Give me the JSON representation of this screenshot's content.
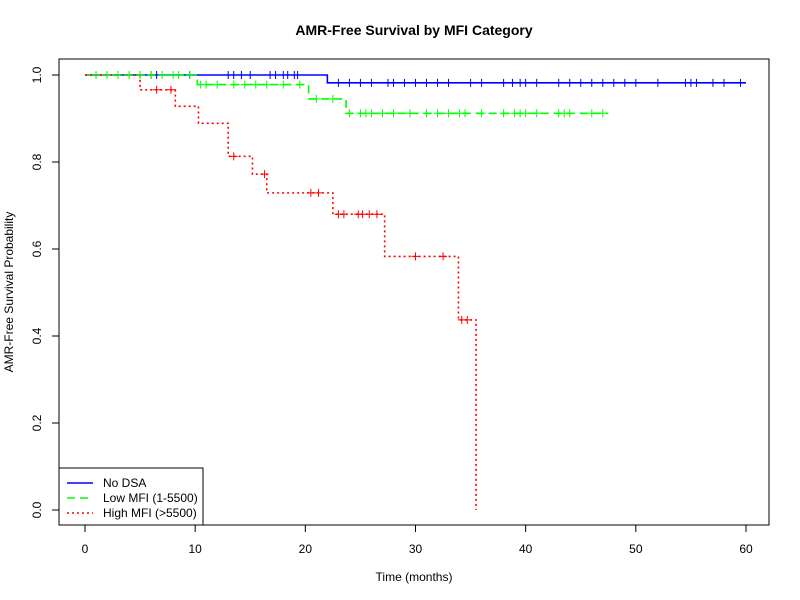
{
  "chart_data": {
    "type": "line",
    "title": "AMR-Free Survival by MFI Category",
    "xlabel": "Time (months)",
    "ylabel": "AMR-Free Survival Probability",
    "xlim": [
      0,
      60
    ],
    "ylim": [
      0,
      1
    ],
    "x_ticks": [
      "0",
      "10",
      "20",
      "30",
      "40",
      "50",
      "60"
    ],
    "y_ticks": [
      "0.0",
      "0.2",
      "0.4",
      "0.6",
      "0.8",
      "1.0"
    ],
    "grid": false,
    "legend_position": "bottom-left",
    "series": [
      {
        "name": "No DSA",
        "color": "#0000ff",
        "line_style": "solid",
        "steps": [
          [
            0,
            1.0
          ],
          [
            22,
            0.982
          ]
        ],
        "end_x": 60,
        "censor": [
          6,
          6.5,
          9.5,
          13,
          13.5,
          14.2,
          15,
          16.8,
          17.3,
          18,
          18.4,
          19,
          19.3,
          23,
          24,
          25,
          26,
          27.5,
          28,
          29,
          30,
          31,
          32,
          33,
          35,
          36,
          38,
          38.8,
          39.5,
          40,
          41,
          43,
          44,
          45,
          46,
          47,
          48,
          49,
          50,
          52,
          54.5,
          55,
          55.5,
          57,
          58,
          59.5
        ]
      },
      {
        "name": "Low MFI (1-5500)",
        "color": "#00ff00",
        "line_style": "dashed",
        "steps": [
          [
            0,
            1.0
          ],
          [
            10.2,
            0.978
          ],
          [
            20.3,
            0.945
          ],
          [
            23.7,
            0.912
          ]
        ],
        "end_x": 47.5,
        "censor": [
          1,
          2,
          3,
          4,
          5,
          6,
          7,
          8,
          8.5,
          9.5,
          10.5,
          11,
          12,
          13.5,
          14.5,
          15.5,
          16.5,
          18,
          19.5,
          21,
          22.5,
          24,
          25,
          25.5,
          26,
          27,
          28,
          29.5,
          31,
          32,
          33,
          34,
          34.5,
          36,
          38,
          39,
          39.5,
          40,
          41,
          43,
          43.5,
          44,
          46,
          47
        ]
      },
      {
        "name": "High MFI (>5500)",
        "color": "#ff0000",
        "line_style": "dotted",
        "steps": [
          [
            0,
            1.0
          ],
          [
            5,
            0.966
          ],
          [
            8.2,
            0.928
          ],
          [
            10.3,
            0.889
          ],
          [
            13,
            0.813
          ],
          [
            15.2,
            0.772
          ],
          [
            16.5,
            0.729
          ],
          [
            22.5,
            0.68
          ],
          [
            27.2,
            0.583
          ],
          [
            33.9,
            0.437
          ],
          [
            35.5,
            0.0
          ]
        ],
        "end_x": 35.5,
        "censor": [
          6.5,
          7.8,
          13.5,
          16.3,
          20.5,
          21.2,
          23,
          23.5,
          24.8,
          25.2,
          25.8,
          26.5,
          30,
          32.5,
          34.2,
          34.7
        ]
      }
    ]
  }
}
